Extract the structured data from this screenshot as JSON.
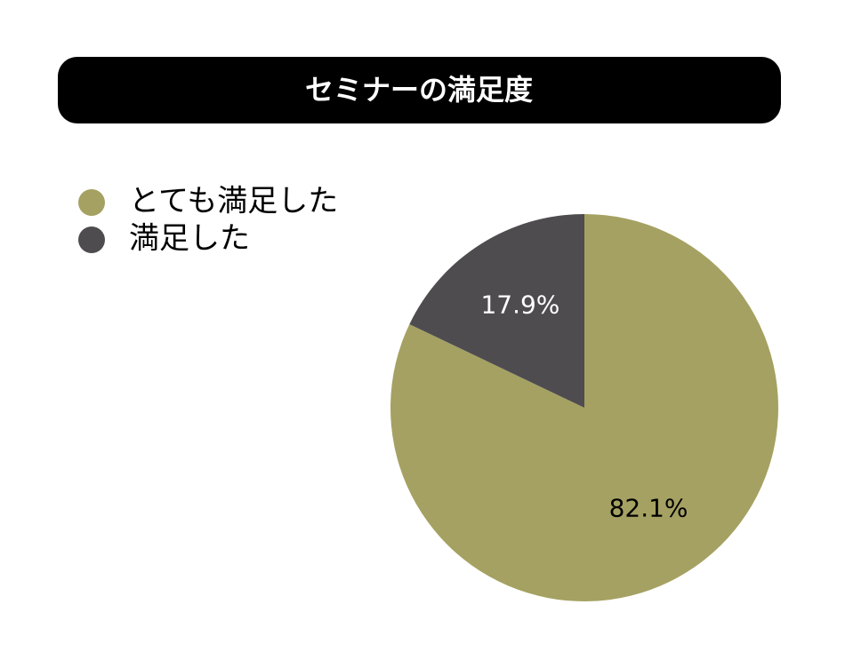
{
  "chart_data": {
    "type": "pie",
    "title": "セミナーの満足度",
    "categories": [
      "とても満足した",
      "満足した"
    ],
    "values": [
      82.1,
      17.9
    ],
    "value_labels": [
      "82.1%",
      "17.9%"
    ],
    "colors": [
      "#a5a162",
      "#4e4c4f"
    ],
    "label_colors": [
      "#000000",
      "#ffffff"
    ]
  }
}
